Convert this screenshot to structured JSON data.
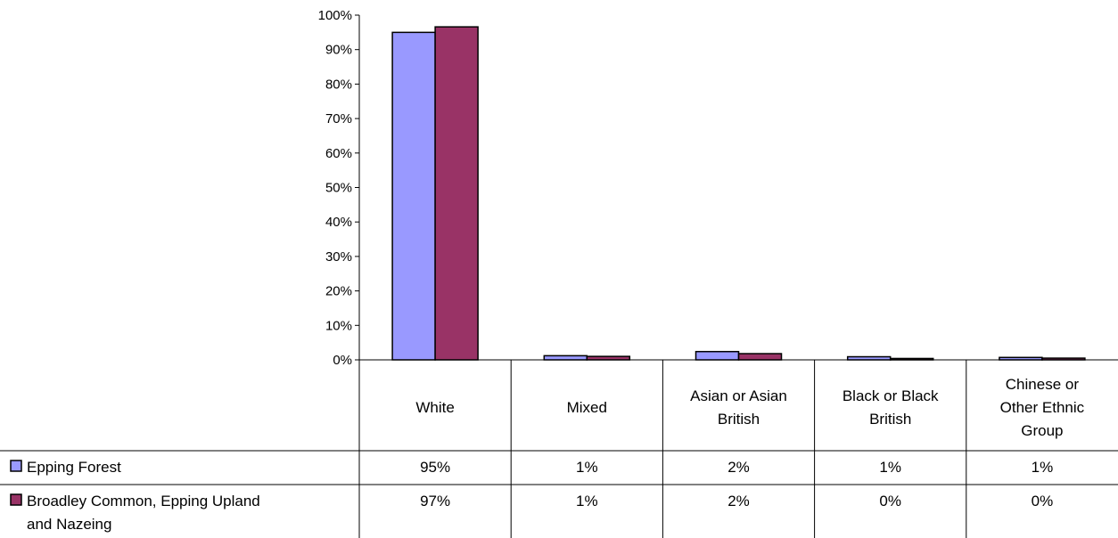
{
  "chart_data": {
    "type": "bar",
    "categories": [
      [
        "White"
      ],
      [
        "Mixed"
      ],
      [
        "Asian or Asian",
        "British"
      ],
      [
        "Black or Black",
        "British"
      ],
      [
        "Chinese or",
        "Other Ethnic",
        "Group"
      ]
    ],
    "series": [
      {
        "name_lines": [
          "Epping Forest"
        ],
        "values": [
          95,
          1.2,
          2.4,
          0.9,
          0.7
        ],
        "labels": [
          "95%",
          "1%",
          "2%",
          "1%",
          "1%"
        ],
        "color": "#9999ff"
      },
      {
        "name_lines": [
          "Broadley Common, Epping Upland",
          "and Nazeing"
        ],
        "values": [
          96.6,
          1.0,
          1.8,
          0.4,
          0.5
        ],
        "labels": [
          "97%",
          "1%",
          "2%",
          "0%",
          "0%"
        ],
        "color": "#993366"
      }
    ],
    "y_ticks": [
      "0%",
      "10%",
      "20%",
      "30%",
      "40%",
      "50%",
      "60%",
      "70%",
      "80%",
      "90%",
      "100%"
    ],
    "ylim": [
      0,
      100
    ],
    "legend": "data-table-left",
    "grid": false
  }
}
